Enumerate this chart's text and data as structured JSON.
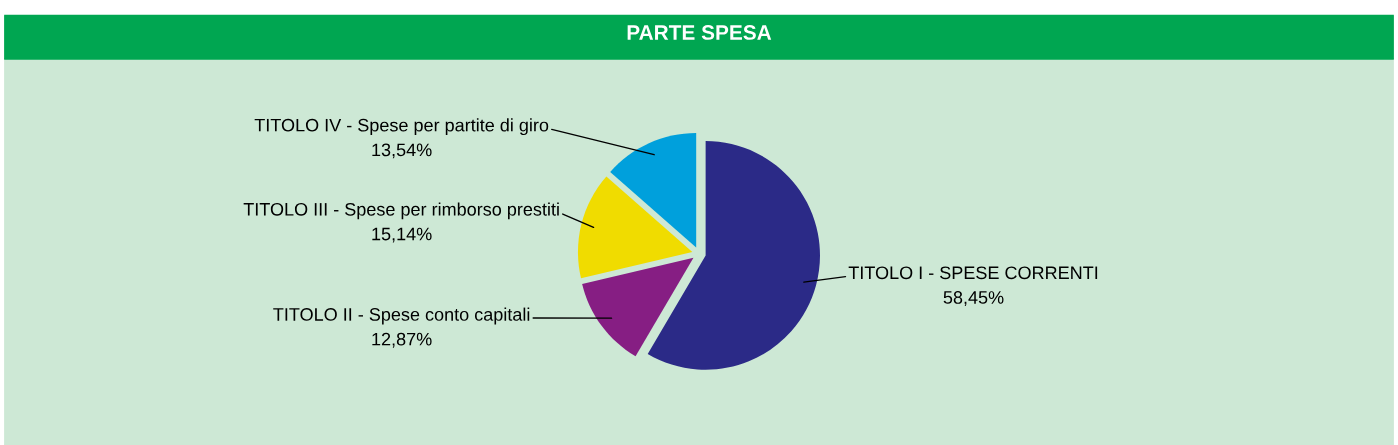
{
  "chart_data": {
    "type": "pie",
    "title": "PARTE SPESA",
    "categories": [
      "TITOLO I - SPESE CORRENTI",
      "TITOLO II - Spese conto capitali",
      "TITOLO III - Spese per rimborso prestiti",
      "TITOLO IV - Spese per partite di giro"
    ],
    "values": [
      58.45,
      12.87,
      15.14,
      13.54
    ],
    "value_labels": [
      "58,45%",
      "12,87%",
      "15,14%",
      "13,54%"
    ],
    "colors": [
      "#2b2a87",
      "#861e83",
      "#f0dc00",
      "#00a0dc"
    ],
    "legend": false
  }
}
